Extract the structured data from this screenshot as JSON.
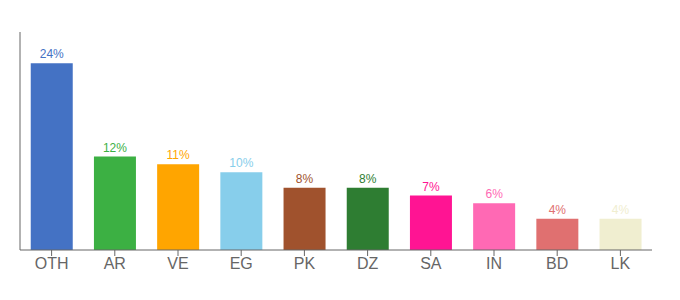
{
  "chart_data": {
    "type": "bar",
    "categories": [
      "OTH",
      "AR",
      "VE",
      "EG",
      "PK",
      "DZ",
      "SA",
      "IN",
      "BD",
      "LK"
    ],
    "values": [
      24,
      12,
      11,
      10,
      8,
      8,
      7,
      6,
      4,
      4
    ],
    "value_labels": [
      "24%",
      "12%",
      "11%",
      "10%",
      "8%",
      "8%",
      "7%",
      "6%",
      "4%",
      "4%"
    ],
    "data_labels": true,
    "colors": [
      "#4472C4",
      "#3CB043",
      "#FFA500",
      "#87CEEB",
      "#A0522D",
      "#2E7D32",
      "#FF1493",
      "#FF69B4",
      "#E07070",
      "#F0EED0"
    ],
    "ylim": [
      0,
      28
    ],
    "grid": false,
    "tick_labels": "x"
  }
}
